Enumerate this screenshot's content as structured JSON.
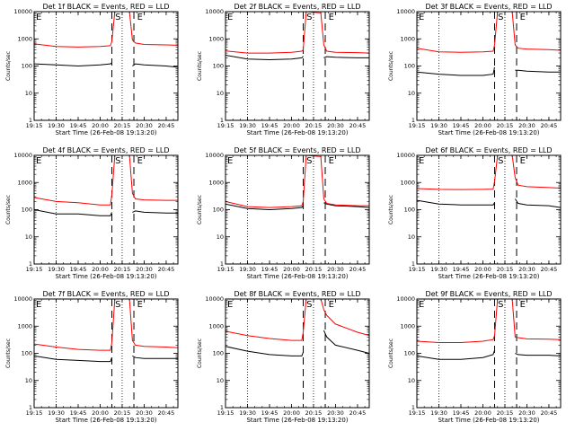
{
  "figure": {
    "common": {
      "type": "line",
      "xlabel": "Start Time (26-Feb-08 19:13:20)",
      "ylabel": "Counts/sec",
      "xlim": [
        "19:15",
        "20:53"
      ],
      "x_ticks": [
        "19:15",
        "19:30",
        "19:45",
        "20:00",
        "20:15",
        "20:30",
        "20:45"
      ],
      "ylim": [
        1,
        10000
      ],
      "yscale": "log",
      "y_ticks": [
        "1",
        "10",
        "100",
        "1000",
        "10000"
      ],
      "dotted_vlines": [
        "19:30",
        "20:15"
      ],
      "dashed_vlines": [
        "20:08",
        "20:23"
      ],
      "markers": [
        {
          "label": "E",
          "x": "19:15"
        },
        {
          "label": "S",
          "x": "20:09"
        },
        {
          "label": "E",
          "x": "20:24"
        }
      ],
      "colors": {
        "events": "#000000",
        "lld": "#ff0000"
      },
      "sample_times": [
        "19:15",
        "19:30",
        "19:45",
        "20:00",
        "20:07",
        "20:08",
        "20:10",
        "20:20",
        "20:22",
        "20:24",
        "20:30",
        "20:45",
        "20:53"
      ]
    },
    "panels": [
      {
        "title": "Det 1f BLACK = Events, RED = LLD",
        "series": [
          {
            "name": "Events",
            "color": "#000000",
            "y": [
              120,
              110,
              100,
              110,
              120,
              130,
              null,
              null,
              100,
              120,
              110,
              100,
              90
            ]
          },
          {
            "name": "LLD",
            "color": "#ff0000",
            "y": [
              650,
              520,
              500,
              520,
              560,
              800,
              10000,
              10000,
              900,
              700,
              620,
              600,
              580
            ]
          }
        ]
      },
      {
        "title": "Det 2f BLACK = Events, RED = LLD",
        "series": [
          {
            "name": "Events",
            "color": "#000000",
            "y": [
              250,
              180,
              170,
              180,
              200,
              230,
              null,
              null,
              200,
              220,
              210,
              200,
              200
            ]
          },
          {
            "name": "LLD",
            "color": "#ff0000",
            "y": [
              360,
              300,
              300,
              320,
              350,
              400,
              10000,
              9000,
              600,
              350,
              320,
              310,
              300
            ]
          }
        ]
      },
      {
        "title": "Det 3f BLACK = Events, RED = LLD",
        "series": [
          {
            "name": "Events",
            "color": "#000000",
            "y": [
              60,
              50,
              45,
              45,
              50,
              90,
              null,
              null,
              70,
              70,
              65,
              60,
              60
            ]
          },
          {
            "name": "LLD",
            "color": "#ff0000",
            "y": [
              450,
              330,
              320,
              330,
              350,
              600,
              10000,
              10000,
              600,
              450,
              420,
              400,
              380
            ]
          }
        ]
      },
      {
        "title": "Det 4f BLACK = Events, RED = LLD",
        "series": [
          {
            "name": "Events",
            "color": "#000000",
            "y": [
              100,
              70,
              70,
              60,
              60,
              80,
              null,
              null,
              80,
              90,
              80,
              75,
              75
            ]
          },
          {
            "name": "LLD",
            "color": "#ff0000",
            "y": [
              280,
              200,
              180,
              150,
              150,
              350,
              10000,
              10000,
              400,
              250,
              230,
              220,
              220
            ]
          }
        ]
      },
      {
        "title": "Det 5f BLACK = Events, RED = LLD",
        "series": [
          {
            "name": "Events",
            "color": "#000000",
            "y": [
              160,
              110,
              100,
              110,
              120,
              140,
              null,
              null,
              180,
              160,
              140,
              130,
              120
            ]
          },
          {
            "name": "LLD",
            "color": "#ff0000",
            "y": [
              200,
              130,
              120,
              130,
              140,
              200,
              10000,
              9000,
              250,
              170,
              150,
              140,
              140
            ]
          }
        ]
      },
      {
        "title": "Det 6f BLACK = Events, RED = LLD",
        "series": [
          {
            "name": "Events",
            "color": "#000000",
            "y": [
              220,
              160,
              150,
              150,
              150,
              180,
              null,
              null,
              250,
              170,
              150,
              140,
              120
            ]
          },
          {
            "name": "LLD",
            "color": "#ff0000",
            "y": [
              600,
              560,
              550,
              560,
              570,
              1100,
              10000,
              10000,
              1500,
              800,
              700,
              650,
              620
            ]
          }
        ]
      },
      {
        "title": "Det 7f BLACK = Events, RED = LLD",
        "series": [
          {
            "name": "Events",
            "color": "#000000",
            "y": [
              80,
              60,
              55,
              50,
              50,
              70,
              null,
              null,
              80,
              70,
              65,
              65,
              65
            ]
          },
          {
            "name": "LLD",
            "color": "#ff0000",
            "y": [
              220,
              170,
              140,
              130,
              130,
              250,
              10000,
              10000,
              300,
              200,
              180,
              170,
              160
            ]
          }
        ]
      },
      {
        "title": "Det 8f BLACK = Events, RED = LLD",
        "series": [
          {
            "name": "Events",
            "color": "#000000",
            "y": [
              180,
              120,
              90,
              80,
              80,
              110,
              null,
              null,
              700,
              400,
              200,
              130,
              100
            ]
          },
          {
            "name": "LLD",
            "color": "#ff0000",
            "y": [
              650,
              450,
              350,
              300,
              300,
              600,
              10000,
              10000,
              4000,
              2500,
              1200,
              600,
              450
            ]
          }
        ]
      },
      {
        "title": "Det 9f BLACK = Events, RED = LLD",
        "series": [
          {
            "name": "Events",
            "color": "#000000",
            "y": [
              80,
              60,
              60,
              70,
              90,
              130,
              null,
              null,
              100,
              90,
              85,
              85,
              80
            ]
          },
          {
            "name": "LLD",
            "color": "#ff0000",
            "y": [
              280,
              250,
              250,
              280,
              320,
              450,
              10000,
              10000,
              400,
              380,
              340,
              330,
              320
            ]
          }
        ]
      }
    ]
  }
}
